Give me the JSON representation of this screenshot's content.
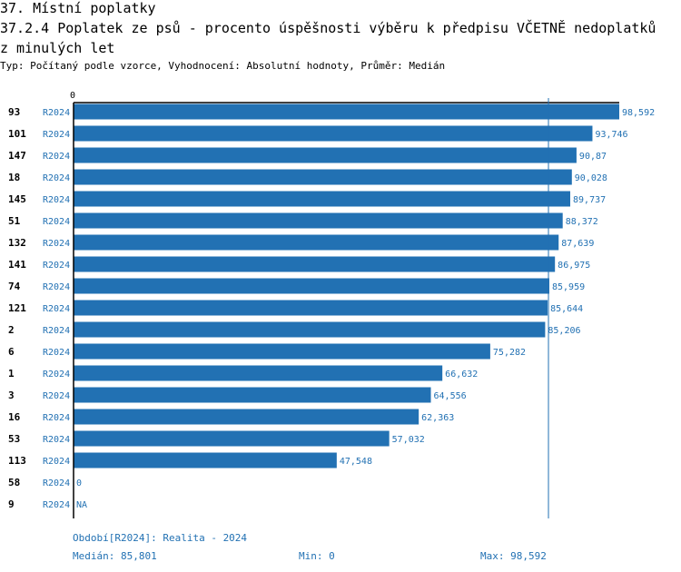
{
  "header": {
    "line1": "37. Místní poplatky",
    "line2": "37.2.4 Poplatek ze psů - procento úspěšnosti výběru k předpisu VČETNĚ nedoplatků",
    "line3": "z minulých let",
    "subtitle": "Typ: Počítaný podle vzorce, Vyhodnocení: Absolutní hodnoty, Průměr: Medián"
  },
  "colors": {
    "bar": "#2271b3",
    "label": "#2271b3",
    "axis": "#000000"
  },
  "chart_data": {
    "type": "bar",
    "orientation": "horizontal",
    "axis_zero_label": "0",
    "xlim": [
      0,
      98.592
    ],
    "period": "R2024",
    "median": 85.801,
    "rows": [
      {
        "id": "93",
        "period": "R2024",
        "value": 98.592,
        "label": "98,592"
      },
      {
        "id": "101",
        "period": "R2024",
        "value": 93.746,
        "label": "93,746"
      },
      {
        "id": "147",
        "period": "R2024",
        "value": 90.87,
        "label": "90,87"
      },
      {
        "id": "18",
        "period": "R2024",
        "value": 90.028,
        "label": "90,028"
      },
      {
        "id": "145",
        "period": "R2024",
        "value": 89.737,
        "label": "89,737"
      },
      {
        "id": "51",
        "period": "R2024",
        "value": 88.372,
        "label": "88,372"
      },
      {
        "id": "132",
        "period": "R2024",
        "value": 87.639,
        "label": "87,639"
      },
      {
        "id": "141",
        "period": "R2024",
        "value": 86.975,
        "label": "86,975"
      },
      {
        "id": "74",
        "period": "R2024",
        "value": 85.959,
        "label": "85,959"
      },
      {
        "id": "121",
        "period": "R2024",
        "value": 85.644,
        "label": "85,644"
      },
      {
        "id": "2",
        "period": "R2024",
        "value": 85.206,
        "label": "85,206"
      },
      {
        "id": "6",
        "period": "R2024",
        "value": 75.282,
        "label": "75,282"
      },
      {
        "id": "1",
        "period": "R2024",
        "value": 66.632,
        "label": "66,632"
      },
      {
        "id": "3",
        "period": "R2024",
        "value": 64.556,
        "label": "64,556"
      },
      {
        "id": "16",
        "period": "R2024",
        "value": 62.363,
        "label": "62,363"
      },
      {
        "id": "53",
        "period": "R2024",
        "value": 57.032,
        "label": "57,032"
      },
      {
        "id": "113",
        "period": "R2024",
        "value": 47.548,
        "label": "47,548"
      },
      {
        "id": "58",
        "period": "R2024",
        "value": 0,
        "label": "0"
      },
      {
        "id": "9",
        "period": "R2024",
        "value": null,
        "label": "NA"
      }
    ]
  },
  "footer": {
    "period_text": "Období[R2024]: Realita - 2024",
    "median_text": "Medián: 85,801",
    "min_text": "Min: 0",
    "max_text": "Max: 98,592"
  }
}
